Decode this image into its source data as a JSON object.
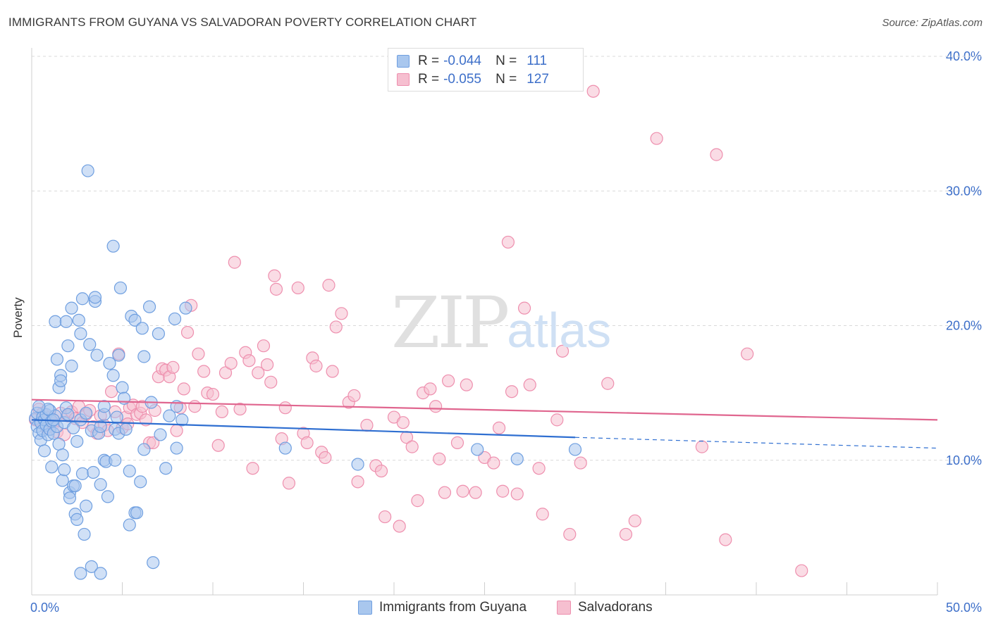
{
  "header": {
    "title": "IMMIGRANTS FROM GUYANA VS SALVADORAN POVERTY CORRELATION CHART",
    "source": "Source: ZipAtlas.com"
  },
  "watermark": {
    "zip": "ZIP",
    "atlas": "atlas"
  },
  "legend": {
    "rows": [
      {
        "r_label": "R =",
        "r_value": "-0.044",
        "n_label": "N =",
        "n_value": "111"
      },
      {
        "r_label": "R =",
        "r_value": "-0.055",
        "n_label": "N =",
        "n_value": "127"
      }
    ]
  },
  "bottom_legend": {
    "series1": "Immigrants from Guyana",
    "series2": "Salvadorans"
  },
  "colors": {
    "blue_fill": "#a9c7ee",
    "blue_stroke": "#6f9fe0",
    "blue_line": "#2f6fd1",
    "pink_fill": "#f6bfd0",
    "pink_stroke": "#ee8fae",
    "pink_line": "#e0668f",
    "tick_label": "#3d6fc9",
    "grid": "#d9d9d9"
  },
  "chart_data": {
    "type": "scatter",
    "title": "IMMIGRANTS FROM GUYANA VS SALVADORAN POVERTY CORRELATION CHART",
    "ylabel": "Poverty",
    "xlim": [
      0,
      50
    ],
    "ylim": [
      0,
      40
    ],
    "x_tick_labels": [
      "0.0%",
      "50.0%"
    ],
    "y_ticks": [
      10,
      20,
      30,
      40
    ],
    "y_tick_labels": [
      "10.0%",
      "20.0%",
      "30.0%",
      "40.0%"
    ],
    "grid": "horizontal dashed",
    "series": [
      {
        "name": "Immigrants from Guyana",
        "r": -0.044,
        "n": 111,
        "trend": {
          "x": [
            0,
            30
          ],
          "y": [
            13.0,
            11.7
          ],
          "dashed_extension_to_x": 50,
          "dashed_end_y": 10.9
        },
        "points": [
          [
            0.2,
            13.1
          ],
          [
            0.3,
            12.5
          ],
          [
            0.3,
            13.5
          ],
          [
            0.4,
            12.0
          ],
          [
            0.5,
            12.8
          ],
          [
            0.5,
            11.5
          ],
          [
            0.6,
            13.2
          ],
          [
            0.6,
            12.2
          ],
          [
            0.7,
            10.7
          ],
          [
            0.7,
            13.0
          ],
          [
            0.8,
            12.6
          ],
          [
            0.8,
            13.4
          ],
          [
            0.9,
            11.9
          ],
          [
            1.0,
            12.3
          ],
          [
            1.0,
            13.7
          ],
          [
            1.1,
            12.9
          ],
          [
            1.1,
            9.5
          ],
          [
            1.2,
            12.0
          ],
          [
            1.3,
            20.3
          ],
          [
            1.3,
            13.3
          ],
          [
            1.4,
            17.5
          ],
          [
            1.4,
            12.5
          ],
          [
            1.5,
            15.4
          ],
          [
            1.5,
            11.2
          ],
          [
            1.6,
            16.3
          ],
          [
            1.6,
            15.9
          ],
          [
            1.7,
            10.4
          ],
          [
            1.7,
            8.5
          ],
          [
            1.8,
            9.3
          ],
          [
            1.8,
            12.8
          ],
          [
            1.9,
            20.3
          ],
          [
            1.9,
            13.9
          ],
          [
            2.0,
            18.5
          ],
          [
            2.0,
            13.4
          ],
          [
            2.1,
            7.6
          ],
          [
            2.1,
            7.2
          ],
          [
            2.2,
            17.0
          ],
          [
            2.2,
            21.3
          ],
          [
            2.3,
            8.1
          ],
          [
            2.3,
            12.4
          ],
          [
            2.4,
            8.1
          ],
          [
            2.4,
            6.0
          ],
          [
            2.5,
            5.6
          ],
          [
            2.5,
            11.4
          ],
          [
            2.6,
            20.4
          ],
          [
            2.7,
            19.4
          ],
          [
            2.7,
            13.0
          ],
          [
            2.8,
            9.0
          ],
          [
            2.8,
            22.0
          ],
          [
            2.9,
            4.5
          ],
          [
            3.0,
            6.6
          ],
          [
            3.0,
            13.5
          ],
          [
            3.1,
            31.5
          ],
          [
            3.2,
            18.6
          ],
          [
            3.3,
            12.2
          ],
          [
            3.4,
            9.1
          ],
          [
            3.5,
            21.8
          ],
          [
            3.5,
            22.1
          ],
          [
            3.6,
            17.8
          ],
          [
            3.7,
            12.0
          ],
          [
            3.8,
            12.5
          ],
          [
            3.8,
            8.2
          ],
          [
            4.0,
            13.4
          ],
          [
            4.0,
            10.0
          ],
          [
            4.0,
            14.0
          ],
          [
            4.1,
            9.9
          ],
          [
            4.2,
            7.3
          ],
          [
            4.3,
            17.2
          ],
          [
            4.5,
            16.3
          ],
          [
            4.5,
            25.9
          ],
          [
            4.6,
            12.3
          ],
          [
            4.6,
            10.0
          ],
          [
            4.7,
            13.2
          ],
          [
            4.8,
            17.8
          ],
          [
            4.8,
            12.0
          ],
          [
            4.9,
            22.8
          ],
          [
            5.0,
            15.4
          ],
          [
            5.1,
            14.6
          ],
          [
            5.2,
            12.3
          ],
          [
            5.4,
            5.2
          ],
          [
            5.4,
            9.2
          ],
          [
            5.5,
            20.7
          ],
          [
            5.7,
            20.4
          ],
          [
            5.7,
            6.1
          ],
          [
            5.8,
            6.1
          ],
          [
            6.0,
            8.4
          ],
          [
            6.1,
            19.8
          ],
          [
            6.2,
            10.8
          ],
          [
            6.2,
            17.7
          ],
          [
            6.5,
            21.4
          ],
          [
            6.6,
            14.3
          ],
          [
            6.7,
            2.4
          ],
          [
            7.0,
            19.4
          ],
          [
            7.1,
            11.9
          ],
          [
            7.4,
            9.4
          ],
          [
            7.6,
            13.3
          ],
          [
            7.9,
            20.5
          ],
          [
            8.0,
            10.9
          ],
          [
            8.0,
            14.0
          ],
          [
            8.3,
            13.0
          ],
          [
            8.5,
            21.3
          ],
          [
            2.7,
            1.6
          ],
          [
            3.3,
            2.1
          ],
          [
            3.8,
            1.6
          ],
          [
            0.9,
            13.8
          ],
          [
            1.2,
            13.0
          ],
          [
            0.4,
            14.0
          ],
          [
            14.0,
            10.9
          ],
          [
            18.0,
            9.7
          ],
          [
            24.6,
            10.8
          ],
          [
            26.8,
            10.1
          ],
          [
            30.0,
            10.8
          ]
        ]
      },
      {
        "name": "Salvadorans",
        "r": -0.055,
        "n": 127,
        "trend": {
          "x": [
            0,
            50
          ],
          "y": [
            14.5,
            13.0
          ]
        },
        "points": [
          [
            0.2,
            13.0
          ],
          [
            0.4,
            13.8
          ],
          [
            0.6,
            13.5
          ],
          [
            0.8,
            12.4
          ],
          [
            1.0,
            13.2
          ],
          [
            1.2,
            12.7
          ],
          [
            1.4,
            12.1
          ],
          [
            1.6,
            13.5
          ],
          [
            1.8,
            11.9
          ],
          [
            2.0,
            13.3
          ],
          [
            2.2,
            13.6
          ],
          [
            2.4,
            13.1
          ],
          [
            2.6,
            14.0
          ],
          [
            2.8,
            12.8
          ],
          [
            3.0,
            13.4
          ],
          [
            3.2,
            13.7
          ],
          [
            3.4,
            12.5
          ],
          [
            3.6,
            12.0
          ],
          [
            3.8,
            13.3
          ],
          [
            4.0,
            12.6
          ],
          [
            4.2,
            12.2
          ],
          [
            4.4,
            15.1
          ],
          [
            4.6,
            13.6
          ],
          [
            4.8,
            17.9
          ],
          [
            5.0,
            12.4
          ],
          [
            5.2,
            13.2
          ],
          [
            5.3,
            12.7
          ],
          [
            5.4,
            13.9
          ],
          [
            5.6,
            14.1
          ],
          [
            5.8,
            13.4
          ],
          [
            6.0,
            13.5
          ],
          [
            6.1,
            14.0
          ],
          [
            6.3,
            13.0
          ],
          [
            6.5,
            11.3
          ],
          [
            6.7,
            11.3
          ],
          [
            6.8,
            13.7
          ],
          [
            7.0,
            16.2
          ],
          [
            7.2,
            16.8
          ],
          [
            7.4,
            16.7
          ],
          [
            7.6,
            16.2
          ],
          [
            7.8,
            16.9
          ],
          [
            8.0,
            12.2
          ],
          [
            8.2,
            13.9
          ],
          [
            8.4,
            15.3
          ],
          [
            8.6,
            19.5
          ],
          [
            8.8,
            21.5
          ],
          [
            9.0,
            14.0
          ],
          [
            9.2,
            17.9
          ],
          [
            9.5,
            16.6
          ],
          [
            9.7,
            15.0
          ],
          [
            10.0,
            14.9
          ],
          [
            10.3,
            11.1
          ],
          [
            10.5,
            13.6
          ],
          [
            10.7,
            16.5
          ],
          [
            11.0,
            17.2
          ],
          [
            11.2,
            24.7
          ],
          [
            11.5,
            13.8
          ],
          [
            11.8,
            18.0
          ],
          [
            12.0,
            17.4
          ],
          [
            12.2,
            9.4
          ],
          [
            12.5,
            16.5
          ],
          [
            12.8,
            18.5
          ],
          [
            13.0,
            17.1
          ],
          [
            13.2,
            15.8
          ],
          [
            13.4,
            23.7
          ],
          [
            13.5,
            22.7
          ],
          [
            13.8,
            11.6
          ],
          [
            14.0,
            13.9
          ],
          [
            14.2,
            8.3
          ],
          [
            14.7,
            22.8
          ],
          [
            15.0,
            12.0
          ],
          [
            15.2,
            11.3
          ],
          [
            15.5,
            17.6
          ],
          [
            15.7,
            17.0
          ],
          [
            16.0,
            10.6
          ],
          [
            16.2,
            10.2
          ],
          [
            16.4,
            23.0
          ],
          [
            16.6,
            16.6
          ],
          [
            16.8,
            19.9
          ],
          [
            17.1,
            20.9
          ],
          [
            17.5,
            14.3
          ],
          [
            17.8,
            14.8
          ],
          [
            18.0,
            8.4
          ],
          [
            18.5,
            12.6
          ],
          [
            19.0,
            9.6
          ],
          [
            19.3,
            9.2
          ],
          [
            19.5,
            5.8
          ],
          [
            20.0,
            13.2
          ],
          [
            20.3,
            5.1
          ],
          [
            20.5,
            12.8
          ],
          [
            20.7,
            11.7
          ],
          [
            21.0,
            11.0
          ],
          [
            21.3,
            7.0
          ],
          [
            21.6,
            15.0
          ],
          [
            22.0,
            15.3
          ],
          [
            22.3,
            14.0
          ],
          [
            22.5,
            10.1
          ],
          [
            22.8,
            7.6
          ],
          [
            23.0,
            15.9
          ],
          [
            23.5,
            11.3
          ],
          [
            23.8,
            7.7
          ],
          [
            24.0,
            15.6
          ],
          [
            24.5,
            7.6
          ],
          [
            25.0,
            10.2
          ],
          [
            25.5,
            9.8
          ],
          [
            25.8,
            12.4
          ],
          [
            26.0,
            7.7
          ],
          [
            26.3,
            26.2
          ],
          [
            26.5,
            15.1
          ],
          [
            26.8,
            7.5
          ],
          [
            27.2,
            21.3
          ],
          [
            27.5,
            15.6
          ],
          [
            28.0,
            9.4
          ],
          [
            28.2,
            6.0
          ],
          [
            29.0,
            13.0
          ],
          [
            29.3,
            18.1
          ],
          [
            29.7,
            4.5
          ],
          [
            30.3,
            9.8
          ],
          [
            31.0,
            37.4
          ],
          [
            31.8,
            15.7
          ],
          [
            32.8,
            4.5
          ],
          [
            33.3,
            5.5
          ],
          [
            34.5,
            33.9
          ],
          [
            37.0,
            11.0
          ],
          [
            37.8,
            32.7
          ],
          [
            38.3,
            4.1
          ],
          [
            39.5,
            17.9
          ],
          [
            42.5,
            1.8
          ]
        ]
      }
    ]
  }
}
